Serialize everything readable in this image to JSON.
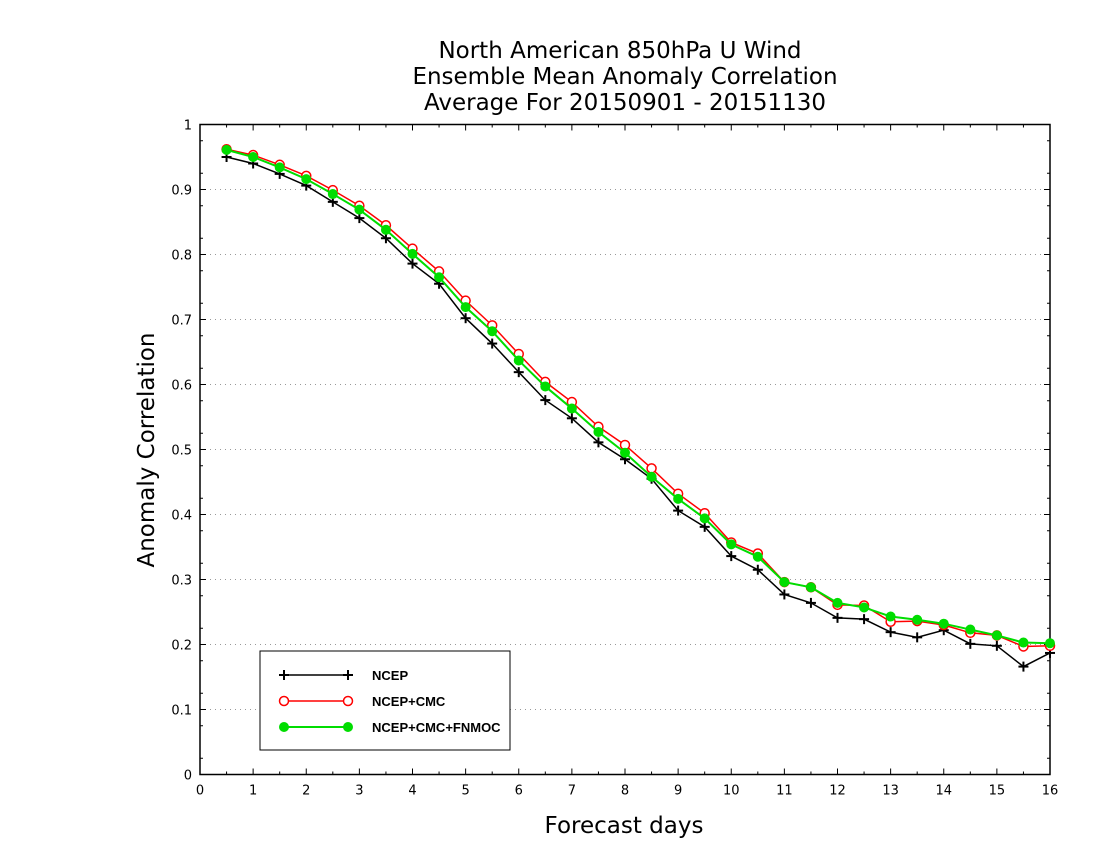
{
  "chart_data": {
    "type": "line",
    "title": [
      "North American 850hPa U Wind",
      "Ensemble Mean Anomaly Correlation",
      "Average For 20150901 - 20151130"
    ],
    "xlabel": "Forecast days",
    "ylabel": "Anomaly Correlation",
    "xlim": [
      0,
      16
    ],
    "ylim": [
      0,
      1
    ],
    "xticks": [
      "0",
      "1",
      "2",
      "3",
      "4",
      "5",
      "6",
      "7",
      "8",
      "9",
      "10",
      "11",
      "12",
      "13",
      "14",
      "15",
      "16"
    ],
    "yticks": [
      "0",
      "0.1",
      "0.2",
      "0.3",
      "0.4",
      "0.5",
      "0.6",
      "0.7",
      "0.8",
      "0.9",
      "1"
    ],
    "grid": true,
    "legend_position": "bottom-left",
    "x": [
      0.5,
      1,
      1.5,
      2,
      2.5,
      3,
      3.5,
      4,
      4.5,
      5,
      5.5,
      6,
      6.5,
      7,
      7.5,
      8,
      8.5,
      9,
      9.5,
      10,
      10.5,
      11,
      11.5,
      12,
      12.5,
      13,
      13.5,
      14,
      14.5,
      15,
      15.5,
      16
    ],
    "series": [
      {
        "name": "NCEP",
        "color": "#000000",
        "marker": "plus",
        "values": [
          0.95,
          0.94,
          0.924,
          0.906,
          0.881,
          0.856,
          0.825,
          0.786,
          0.755,
          0.702,
          0.663,
          0.619,
          0.576,
          0.548,
          0.511,
          0.485,
          0.455,
          0.406,
          0.381,
          0.336,
          0.315,
          0.277,
          0.264,
          0.241,
          0.239,
          0.219,
          0.211,
          0.222,
          0.201,
          0.198,
          0.166,
          0.187
        ]
      },
      {
        "name": "NCEP+CMC",
        "color": "#ff0000",
        "marker": "open-circle",
        "values": [
          0.962,
          0.953,
          0.938,
          0.921,
          0.899,
          0.875,
          0.845,
          0.809,
          0.774,
          0.729,
          0.691,
          0.647,
          0.604,
          0.573,
          0.535,
          0.507,
          0.471,
          0.432,
          0.402,
          0.357,
          0.34,
          0.296,
          0.288,
          0.261,
          0.26,
          0.235,
          0.236,
          0.23,
          0.218,
          0.214,
          0.197,
          0.198
        ]
      },
      {
        "name": "NCEP+CMC+FNMOC",
        "color": "#00dd00",
        "marker": "filled-circle",
        "values": [
          0.961,
          0.95,
          0.934,
          0.916,
          0.893,
          0.869,
          0.838,
          0.801,
          0.765,
          0.719,
          0.682,
          0.637,
          0.597,
          0.563,
          0.527,
          0.495,
          0.458,
          0.424,
          0.394,
          0.354,
          0.335,
          0.296,
          0.288,
          0.264,
          0.257,
          0.243,
          0.238,
          0.232,
          0.223,
          0.214,
          0.203,
          0.202
        ]
      }
    ]
  }
}
